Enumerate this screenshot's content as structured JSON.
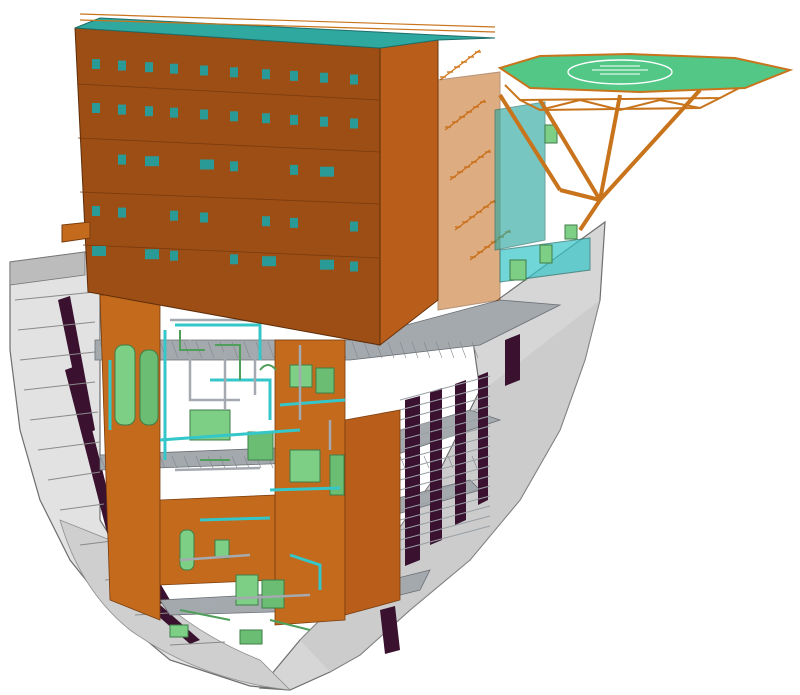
{
  "scene": {
    "subject": "ship-hull-cutaway-with-accommodation-block-and-helideck",
    "colors": {
      "background": "#ffffff",
      "hull_light": "#d9d9d9",
      "hull_mid": "#bdbdbd",
      "hull_shadow": "#8e8e8e",
      "hull_edge": "#6e6e6e",
      "block_face": "#9c4e14",
      "block_side": "#b85e1a",
      "block_top": "#2fa8a0",
      "window": "#2a9a96",
      "steel": "#d27a1e",
      "grating": "#9aa0a6",
      "equipment": "#7ecf86",
      "equipment_dark": "#4f9e5a",
      "pipe_cyan": "#34c6c8",
      "bulkhead_dark": "#3a1230",
      "helideck_surface": "#52c786",
      "helideck_marking": "#ffffff",
      "helideck_frame": "#c8741c"
    },
    "icons": [
      "helideck-icon",
      "ladder-icon",
      "railing-icon"
    ]
  }
}
